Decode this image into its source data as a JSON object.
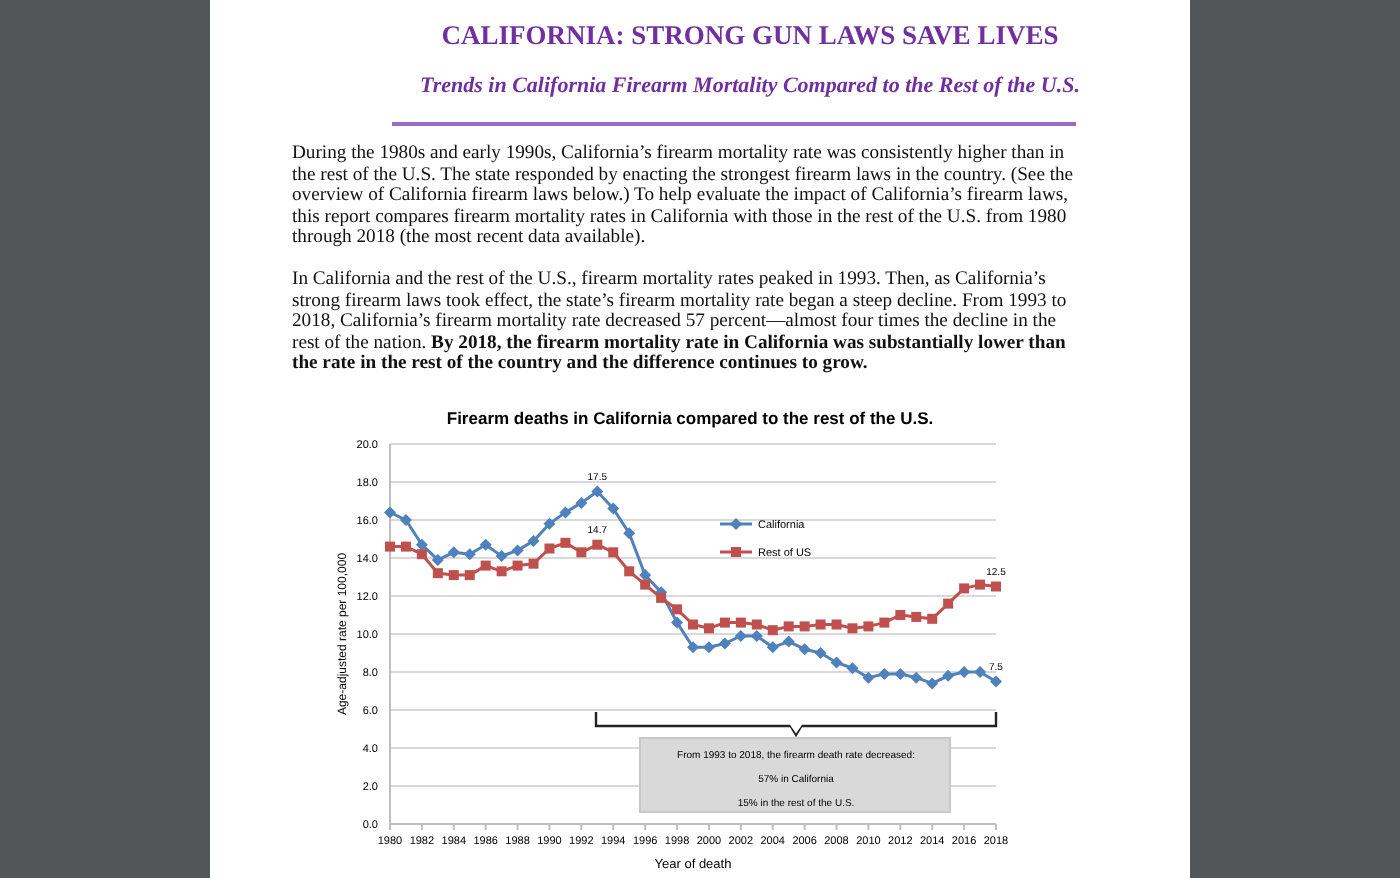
{
  "chart_data": {
    "type": "line",
    "title": "Firearm deaths in California compared to the rest of the U.S.",
    "xlabel": "Year of death",
    "ylabel": "Age-adjusted rate per 100,000",
    "annotations": [
      "CALIFORNIA: STRONG GUN LAWS SAVE LIVES",
      "Trends in California Firearm Mortality Compared to the Rest of the U.S.",
      "During the 1980s and early 1990s, California’s firearm mortality rate was consistently higher than in the rest of the U.S. The state responded by enacting the strongest firearm laws in the country. (See the overview of California firearm laws below.) To help evaluate the impact of California’s firearm laws, this report compares firearm mortality rates in California with those in the rest of the U.S. from 1980 through 2018 (the most recent data available).",
      "In California and the rest of the U.S., firearm mortality rates peaked in 1993. Then, as California’s strong firearm laws took effect, the state’s firearm mortality rate began a steep decline. From 1993 to 2018, California’s firearm mortality rate decreased 57 percent—almost four times the decline in the rest of the nation.",
      "By 2018, the firearm mortality rate in California was substantially lower than the rate in the rest of the country and the difference continues to grow.",
      "From 1993 to 2018, the firearm death rate decreased:",
      "57% in California",
      "15% in the rest of the U.S."
    ],
    "x": [
      1980,
      1981,
      1982,
      1983,
      1984,
      1985,
      1986,
      1987,
      1988,
      1989,
      1990,
      1991,
      1992,
      1993,
      1994,
      1995,
      1996,
      1997,
      1998,
      1999,
      2000,
      2001,
      2002,
      2003,
      2004,
      2005,
      2006,
      2007,
      2008,
      2009,
      2010,
      2011,
      2012,
      2013,
      2014,
      2015,
      2016,
      2017,
      2018
    ],
    "series": [
      {
        "name": "California",
        "color": "#4f81bd",
        "marker": "diamond",
        "values": [
          16.4,
          16.0,
          14.7,
          13.9,
          14.3,
          14.2,
          14.7,
          14.1,
          14.4,
          14.9,
          15.8,
          16.4,
          16.9,
          17.5,
          16.6,
          15.3,
          13.1,
          12.2,
          10.6,
          9.3,
          9.3,
          9.5,
          9.9,
          9.9,
          9.3,
          9.6,
          9.2,
          9.0,
          8.5,
          8.2,
          7.7,
          7.9,
          7.9,
          7.7,
          7.4,
          7.8,
          8.0,
          8.0,
          7.5
        ],
        "value_labels": [
          null,
          null,
          null,
          null,
          null,
          null,
          null,
          null,
          null,
          null,
          null,
          null,
          null,
          "17.5",
          null,
          null,
          null,
          null,
          null,
          null,
          null,
          null,
          null,
          null,
          null,
          null,
          null,
          null,
          null,
          null,
          null,
          null,
          null,
          null,
          null,
          null,
          null,
          null,
          "7.5"
        ]
      },
      {
        "name": "Rest of US",
        "color": "#c0504d",
        "marker": "square",
        "values": [
          14.6,
          14.6,
          14.2,
          13.2,
          13.1,
          13.1,
          13.6,
          13.3,
          13.6,
          13.7,
          14.5,
          14.8,
          14.3,
          14.7,
          14.3,
          13.3,
          12.6,
          11.9,
          11.3,
          10.5,
          10.3,
          10.6,
          10.6,
          10.5,
          10.2,
          10.4,
          10.4,
          10.5,
          10.5,
          10.3,
          10.4,
          10.6,
          11.0,
          10.9,
          10.8,
          11.6,
          12.4,
          12.6,
          12.5
        ],
        "value_labels": [
          null,
          null,
          null,
          null,
          null,
          null,
          null,
          null,
          null,
          null,
          null,
          null,
          null,
          "14.7",
          null,
          null,
          null,
          null,
          null,
          null,
          null,
          null,
          null,
          null,
          null,
          null,
          null,
          null,
          null,
          null,
          null,
          null,
          null,
          null,
          null,
          null,
          null,
          null,
          "12.5"
        ]
      }
    ],
    "xlim": [
      1980,
      2018
    ],
    "xticks": [
      1980,
      1982,
      1984,
      1986,
      1988,
      1990,
      1992,
      1994,
      1996,
      1998,
      2000,
      2002,
      2004,
      2006,
      2008,
      2010,
      2012,
      2014,
      2016,
      2018
    ],
    "ylim": [
      0,
      20
    ],
    "yticks": [
      {
        "value": 0,
        "label": "0.0"
      },
      {
        "value": 2,
        "label": "2.0"
      },
      {
        "value": 4,
        "label": "4.0"
      },
      {
        "value": 6,
        "label": "6.0"
      },
      {
        "value": 8,
        "label": "8.0"
      },
      {
        "value": 10,
        "label": "10.0"
      },
      {
        "value": 12,
        "label": "12.0"
      },
      {
        "value": 14,
        "label": "14.0"
      },
      {
        "value": 16,
        "label": "16.0"
      },
      {
        "value": 18,
        "label": "18.0"
      },
      {
        "value": 20,
        "label": "20.0"
      }
    ],
    "grid": "y",
    "legend": "top right",
    "line_style": "solid"
  }
}
